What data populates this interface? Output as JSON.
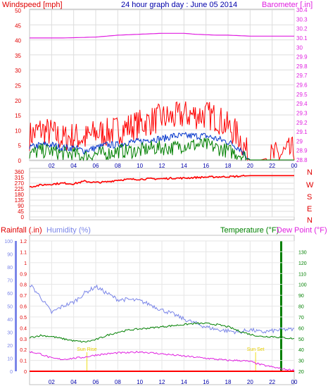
{
  "chart_data": [
    {
      "type": "line",
      "title": "24 hour graph day : June 05 2014",
      "ylabel_left": "Windspeed [mph]",
      "ylabel_right": "Barometer [.in]",
      "x_ticks": [
        "02",
        "04",
        "06",
        "08",
        "10",
        "12",
        "14",
        "16",
        "18",
        "20",
        "22",
        "00"
      ],
      "ylim_left": [
        0,
        50
      ],
      "ylim_right": [
        28.8,
        30.4
      ],
      "y_ticks_left": [
        0,
        5,
        10,
        15,
        20,
        25,
        30,
        35,
        40,
        45,
        50
      ],
      "y_ticks_right": [
        "28.8",
        "28.9",
        "29",
        "29.1",
        "29.2",
        "29.3",
        "29.4",
        "29.5",
        "29.6",
        "29.7",
        "29.8",
        "29.9",
        "30",
        "30.1",
        "30.2",
        "30.3",
        "30.4"
      ],
      "series": [
        {
          "name": "Barometer",
          "color": "#e020e0",
          "axis": "right",
          "x": [
            0,
            3,
            6,
            8,
            10,
            12,
            14,
            15,
            17,
            18,
            20,
            22,
            24
          ],
          "values": [
            30.1,
            30.1,
            30.11,
            30.13,
            30.14,
            30.15,
            30.15,
            30.14,
            30.13,
            30.13,
            30.12,
            30.12,
            30.12
          ]
        },
        {
          "name": "Gust",
          "color": "#ff0000",
          "axis": "left",
          "x": [
            0,
            1,
            2,
            3,
            4,
            5,
            6,
            7,
            8,
            9,
            10,
            11,
            12,
            13,
            14,
            15,
            16,
            17,
            18,
            19,
            20,
            21,
            22,
            23,
            24
          ],
          "values": [
            8,
            10,
            9,
            7,
            8,
            7,
            9,
            9,
            10,
            11,
            12,
            13,
            14,
            14,
            15,
            15,
            15,
            14,
            11,
            8,
            0,
            0,
            1,
            2,
            3
          ]
        },
        {
          "name": "Average",
          "color": "#0033cc",
          "axis": "left",
          "x": [
            0,
            1,
            2,
            3,
            4,
            5,
            6,
            7,
            8,
            9,
            10,
            11,
            12,
            13,
            14,
            15,
            16,
            17,
            18,
            19,
            20,
            21,
            22,
            23,
            24
          ],
          "values": [
            4,
            5,
            5,
            4,
            4,
            3,
            4,
            5,
            5,
            6,
            6,
            7,
            7,
            8,
            8,
            8,
            8,
            7,
            6,
            4,
            0,
            0,
            0,
            0,
            0
          ]
        },
        {
          "name": "Low",
          "color": "#008000",
          "axis": "left",
          "x": [
            0,
            1,
            2,
            3,
            4,
            5,
            6,
            7,
            8,
            9,
            10,
            11,
            12,
            13,
            14,
            15,
            16,
            17,
            18,
            19,
            20,
            21,
            22,
            23,
            24
          ],
          "values": [
            2,
            3,
            3,
            2,
            2,
            1,
            2,
            2,
            3,
            3,
            3,
            4,
            4,
            4,
            5,
            5,
            5,
            4,
            3,
            2,
            0,
            0,
            0,
            0,
            0
          ]
        }
      ]
    },
    {
      "type": "line",
      "ylabel_right": [
        "N",
        "W",
        "S",
        "E",
        "N"
      ],
      "x_ticks": [
        "02",
        "04",
        "06",
        "08",
        "10",
        "12",
        "14",
        "16",
        "18",
        "20",
        "22",
        "00"
      ],
      "ylim": [
        0,
        360
      ],
      "y_ticks": [
        0,
        45,
        90,
        135,
        180,
        225,
        270,
        315,
        360
      ],
      "series": [
        {
          "name": "Wind direction",
          "color": "#ff0000",
          "x": [
            0,
            1,
            2,
            3,
            4,
            5,
            6,
            7,
            8,
            9,
            10,
            11,
            12,
            13,
            14,
            15,
            16,
            17,
            18,
            19,
            20,
            21,
            22,
            23,
            24
          ],
          "values": [
            240,
            255,
            262,
            270,
            265,
            285,
            275,
            280,
            295,
            300,
            302,
            305,
            305,
            310,
            310,
            315,
            318,
            320,
            322,
            325,
            330,
            330,
            330,
            330,
            330
          ]
        }
      ]
    },
    {
      "type": "line",
      "labels": {
        "rainfall": "Rainfall (.in)",
        "humidity": "Humidity (%)",
        "temperature": "Temperature (°F)",
        "dewpoint": "Dew Point (°F)"
      },
      "x_ticks": [
        "02",
        "04",
        "06",
        "08",
        "10",
        "12",
        "14",
        "16",
        "18",
        "20",
        "22",
        "00"
      ],
      "ylim_rain": [
        0,
        1.2
      ],
      "ylim_humidity": [
        0,
        100
      ],
      "ylim_temperature": [
        20,
        140
      ],
      "y_ticks_rain": [
        "0",
        "0.1",
        "0.2",
        "0.3",
        "0.4",
        "0.5",
        "0.6",
        "0.7",
        "0.8",
        "0.9",
        "1",
        "1.1",
        "1.2"
      ],
      "y_ticks_humidity": [
        0,
        10,
        20,
        30,
        40,
        50,
        60,
        70,
        80,
        90,
        100
      ],
      "y_ticks_temperature": [
        20,
        30,
        40,
        50,
        60,
        70,
        80,
        90,
        100,
        110,
        120,
        130
      ],
      "annotations": [
        {
          "text": "Sun Rise",
          "x": 5.2
        },
        {
          "text": "Sun Set",
          "x": 20.5
        }
      ],
      "series": [
        {
          "name": "Humidity",
          "color": "#7b86e8",
          "axis": "humidity",
          "x": [
            0,
            1,
            2,
            3,
            4,
            5,
            6,
            7,
            8,
            9,
            10,
            11,
            12,
            13,
            14,
            15,
            16,
            17,
            18,
            19,
            20,
            21,
            22,
            23,
            24
          ],
          "values": [
            67,
            57,
            45,
            50,
            53,
            60,
            65,
            60,
            55,
            55,
            54,
            51,
            47,
            44,
            40,
            37,
            34,
            32,
            31,
            30,
            32,
            30,
            31,
            32,
            32
          ]
        },
        {
          "name": "Temperature",
          "color": "#008000",
          "axis": "temperature",
          "x": [
            0,
            1,
            2,
            3,
            4,
            5,
            6,
            7,
            8,
            9,
            10,
            11,
            12,
            13,
            14,
            15,
            16,
            17,
            18,
            19,
            20,
            21,
            22,
            23,
            24
          ],
          "values": [
            51,
            53,
            52,
            50,
            48,
            47,
            49,
            53,
            56,
            58,
            59,
            60,
            61,
            62,
            63,
            64,
            64,
            63,
            61,
            57,
            54,
            52,
            52,
            51,
            50
          ]
        },
        {
          "name": "Dew Point",
          "color": "#e020e0",
          "axis": "temperature",
          "x": [
            0,
            1,
            2,
            3,
            4,
            5,
            6,
            7,
            8,
            9,
            10,
            11,
            12,
            13,
            14,
            15,
            16,
            17,
            18,
            19,
            20,
            21,
            22,
            23,
            24
          ],
          "values": [
            38,
            36,
            32,
            31,
            32,
            33,
            35,
            36,
            37,
            37,
            38,
            37,
            36,
            35,
            34,
            33,
            32,
            31,
            30,
            30,
            29,
            26,
            24,
            22,
            21
          ]
        },
        {
          "name": "Rainfall",
          "color": "#ff0000",
          "axis": "rain",
          "x": [
            0,
            24
          ],
          "values": [
            0,
            0
          ]
        }
      ]
    }
  ]
}
